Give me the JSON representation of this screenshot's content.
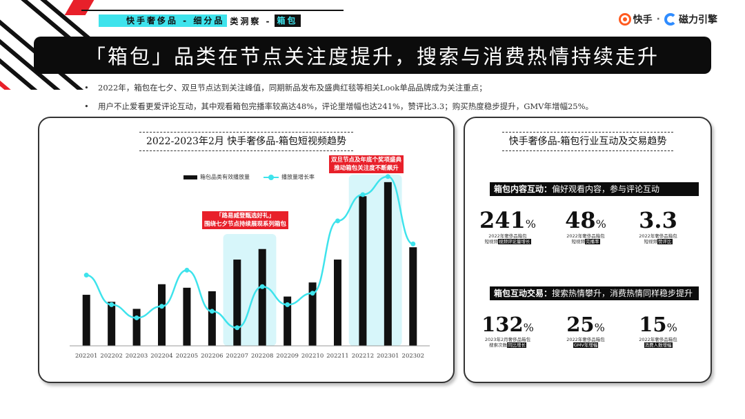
{
  "header": {
    "breadcrumb_1": "快手奢侈品 - 细分品",
    "breadcrumb_2": "类洞察 -",
    "breadcrumb_3": "箱包",
    "logo_kuaishou": "快手",
    "logo_dot": "·",
    "logo_cili": "磁力引擎"
  },
  "banner": {
    "title": "「箱包」品类在节点关注度提升，搜索与消费热情持续走升"
  },
  "bullets": [
    "2022年，箱包在七夕、双旦节点达到关注峰值，同期新品发布及盛典红毯等相关Look单品品牌成为关注重点；",
    "用户不止爱看更爱评论互动，其中观看箱包完播率较高达48%，评论里增幅也达241%，赞评比3.3；购买热度稳步提升，GMV年增幅25%。"
  ],
  "left_card": {
    "title": "2022-2023年2月 快手奢侈品-箱包短视频趋势",
    "legend_bar": "箱包品类有效播放量",
    "legend_line": "播放量增长率",
    "annotation_1": "「路易威登甄选好礼」\n围绕七夕节点持续展现系列箱包",
    "annotation_2": "双旦节点及年底个奖项盛典\n推动箱包关注度不断飙升"
  },
  "chart_data": {
    "type": "bar",
    "title": "2022-2023年2月 快手奢侈品-箱包短视频趋势",
    "categories": [
      "202201",
      "202202",
      "202203",
      "202204",
      "202205",
      "202206",
      "202207",
      "202208",
      "202209",
      "202210",
      "202211",
      "202212",
      "202301",
      "202302"
    ],
    "series": [
      {
        "name": "箱包品类有效播放量",
        "type": "bar",
        "values": [
          29,
          25,
          21,
          35,
          33,
          31,
          49,
          55,
          28,
          36,
          49,
          85,
          93,
          56
        ]
      },
      {
        "name": "播放量增长率",
        "type": "line",
        "values": [
          38,
          20,
          12,
          19,
          41,
          16,
          6,
          31,
          20,
          27,
          71,
          87,
          98,
          57
        ]
      }
    ],
    "highlight_ranges": [
      [
        "202207",
        "202208"
      ],
      [
        "202212",
        "202301"
      ]
    ],
    "colors": {
      "bar": "#111111",
      "line": "#3ee3ec",
      "highlight": "#d7f6fa"
    },
    "grid": false,
    "legend": "top"
  },
  "right_card": {
    "title": "快手奢侈品-箱包行业互动及交易趋势",
    "section1_label": "箱包内容互动：",
    "section1_desc": "偏好观看内容，参与评论互动",
    "section2_label": "箱包互动交易：",
    "section2_desc": "搜索热情攀升，消费热情同样稳步提升",
    "kpis_top": [
      {
        "value": "241",
        "unit": "%",
        "cap1": "2022年奢侈品箱包",
        "cap2_pre": "短视频",
        "cap2_hl": "视频评论量增长"
      },
      {
        "value": "48",
        "unit": "%",
        "cap1": "2022年奢侈品箱包",
        "cap2_pre": "短视频",
        "cap2_hl": "完播率"
      },
      {
        "value": "3.3",
        "unit": "",
        "cap1": "2022年奢侈品箱包",
        "cap2_pre": "短视频",
        "cap2_hl": "赞评比"
      }
    ],
    "kpis_bottom": [
      {
        "value": "132",
        "unit": "%",
        "cap1": "2023年2月奢侈品箱包",
        "cap2_pre": "搜索次数",
        "cap2_hl": "同比增长"
      },
      {
        "value": "25",
        "unit": "%",
        "cap1": "2022年奢侈品箱包",
        "cap2_pre": "",
        "cap2_hl": "GMV年增幅"
      },
      {
        "value": "15",
        "unit": "%",
        "cap1": "2022年奢侈品箱包",
        "cap2_pre": "",
        "cap2_hl": "消费人数增幅"
      }
    ]
  }
}
